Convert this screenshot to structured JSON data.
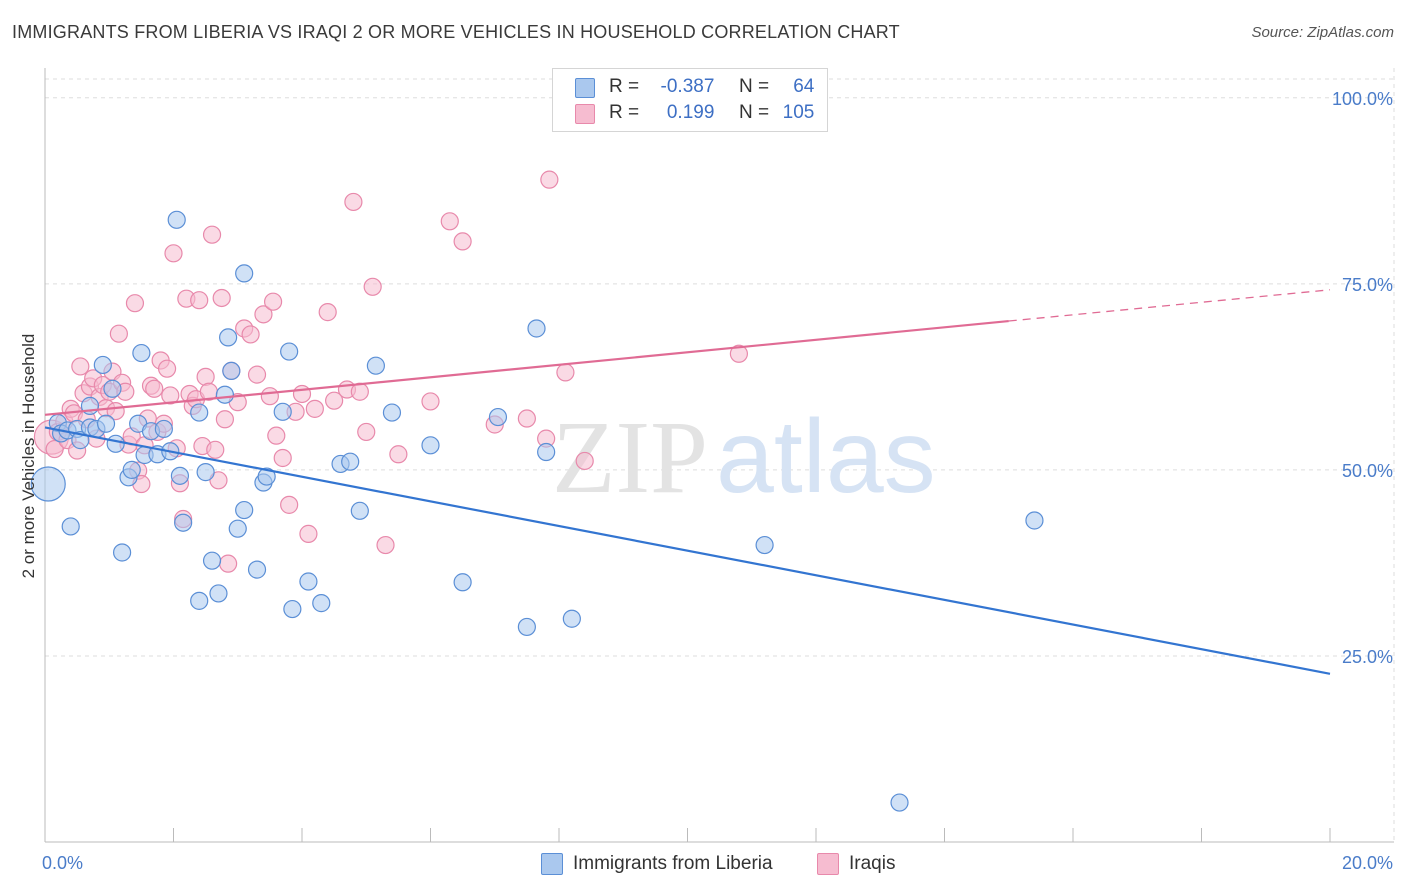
{
  "title": "IMMIGRANTS FROM LIBERIA VS IRAQI 2 OR MORE VEHICLES IN HOUSEHOLD CORRELATION CHART",
  "source": "Source: ZipAtlas.com",
  "watermark": {
    "zip": "ZIP",
    "atlas": "atlas"
  },
  "legend": {
    "rows": [
      {
        "r_label": "R =",
        "r_value": "-0.387",
        "n_label": "N =",
        "n_value": "64"
      },
      {
        "r_label": "R =",
        "r_value": "0.199",
        "n_label": "N =",
        "n_value": "105"
      }
    ]
  },
  "colors": {
    "liberia_fill": "#aac8ee",
    "liberia_stroke": "#5b8fd6",
    "liberia_line": "#3375d1",
    "iraqi_fill": "#f6bcd0",
    "iraqi_stroke": "#e889ab",
    "iraqi_line": "#e06b94",
    "tick_label": "#4a7cc9",
    "grid": "#dddddd"
  },
  "chart_data": {
    "type": "scatter",
    "title": "IMMIGRANTS FROM LIBERIA VS IRAQI 2 OR MORE VEHICLES IN HOUSEHOLD CORRELATION CHART",
    "xlabel": "",
    "ylabel": "2 or more Vehicles in Household",
    "xlim": [
      0,
      20
    ],
    "ylim": [
      0,
      104
    ],
    "x_ticks": [
      "0.0%",
      "20.0%"
    ],
    "y_ticks": [
      {
        "value": 100,
        "label": "100.0%"
      },
      {
        "value": 75,
        "label": "75.0%"
      },
      {
        "value": 50,
        "label": "50.0%"
      },
      {
        "value": 25,
        "label": "25.0%"
      }
    ],
    "grid": true,
    "legend_position": "top-center",
    "series": [
      {
        "name": "Immigrants from Liberia",
        "r": -0.387,
        "n": 64,
        "trend": {
          "x0": 0,
          "y0": 55.7,
          "x1": 20,
          "y1": 22.6,
          "solid_until": 20
        },
        "points": [
          [
            0.05,
            48.1
          ],
          [
            0.2,
            56.3
          ],
          [
            0.25,
            54.9
          ],
          [
            0.35,
            55.3
          ],
          [
            0.4,
            42.4
          ],
          [
            0.5,
            55.5
          ],
          [
            0.55,
            54.0
          ],
          [
            0.7,
            55.7
          ],
          [
            0.7,
            58.6
          ],
          [
            0.8,
            55.5
          ],
          [
            0.9,
            64.1
          ],
          [
            0.95,
            56.2
          ],
          [
            1.05,
            60.9
          ],
          [
            1.1,
            53.5
          ],
          [
            1.2,
            38.9
          ],
          [
            1.3,
            49.0
          ],
          [
            1.35,
            50.0
          ],
          [
            1.45,
            56.2
          ],
          [
            1.5,
            65.7
          ],
          [
            1.55,
            52.0
          ],
          [
            1.65,
            55.2
          ],
          [
            1.75,
            52.1
          ],
          [
            1.85,
            55.5
          ],
          [
            1.95,
            52.5
          ],
          [
            2.05,
            83.6
          ],
          [
            2.1,
            49.2
          ],
          [
            2.15,
            42.9
          ],
          [
            2.4,
            57.7
          ],
          [
            2.4,
            32.4
          ],
          [
            2.5,
            49.7
          ],
          [
            2.6,
            37.8
          ],
          [
            2.7,
            33.4
          ],
          [
            2.8,
            60.1
          ],
          [
            2.85,
            67.8
          ],
          [
            2.9,
            63.3
          ],
          [
            3.0,
            42.1
          ],
          [
            3.1,
            76.4
          ],
          [
            3.1,
            44.6
          ],
          [
            3.3,
            36.6
          ],
          [
            3.4,
            48.3
          ],
          [
            3.45,
            49.1
          ],
          [
            3.7,
            57.8
          ],
          [
            3.8,
            65.9
          ],
          [
            3.85,
            31.3
          ],
          [
            4.1,
            35.0
          ],
          [
            4.3,
            32.1
          ],
          [
            4.6,
            50.8
          ],
          [
            4.75,
            51.1
          ],
          [
            4.9,
            44.5
          ],
          [
            5.15,
            64.0
          ],
          [
            5.4,
            57.7
          ],
          [
            6.0,
            53.3
          ],
          [
            6.5,
            34.9
          ],
          [
            7.05,
            57.1
          ],
          [
            7.5,
            28.9
          ],
          [
            7.65,
            69.0
          ],
          [
            7.8,
            52.4
          ],
          [
            8.2,
            30.0
          ],
          [
            11.2,
            39.9
          ],
          [
            13.3,
            5.3
          ],
          [
            15.4,
            43.2
          ]
        ]
      },
      {
        "name": "Iraqis",
        "r": 0.199,
        "n": 105,
        "trend": {
          "x0": 0,
          "y0": 57.4,
          "x1": 20,
          "y1": 74.2,
          "solid_until": 15
        },
        "points": [
          [
            0.1,
            54.4
          ],
          [
            0.15,
            52.8
          ],
          [
            0.2,
            55.1
          ],
          [
            0.3,
            56.5
          ],
          [
            0.35,
            54.0
          ],
          [
            0.4,
            58.2
          ],
          [
            0.45,
            57.6
          ],
          [
            0.5,
            52.6
          ],
          [
            0.55,
            63.9
          ],
          [
            0.6,
            60.3
          ],
          [
            0.65,
            56.8
          ],
          [
            0.7,
            61.2
          ],
          [
            0.75,
            62.3
          ],
          [
            0.8,
            54.2
          ],
          [
            0.85,
            59.8
          ],
          [
            0.9,
            61.4
          ],
          [
            0.95,
            58.3
          ],
          [
            1.0,
            60.5
          ],
          [
            1.05,
            63.2
          ],
          [
            1.1,
            57.9
          ],
          [
            1.15,
            68.3
          ],
          [
            1.2,
            61.7
          ],
          [
            1.25,
            60.5
          ],
          [
            1.3,
            53.4
          ],
          [
            1.35,
            54.5
          ],
          [
            1.4,
            72.4
          ],
          [
            1.45,
            49.9
          ],
          [
            1.5,
            48.1
          ],
          [
            1.55,
            53.3
          ],
          [
            1.6,
            56.9
          ],
          [
            1.65,
            61.3
          ],
          [
            1.7,
            60.9
          ],
          [
            1.75,
            55.1
          ],
          [
            1.8,
            64.7
          ],
          [
            1.85,
            56.2
          ],
          [
            1.9,
            63.6
          ],
          [
            1.95,
            60.0
          ],
          [
            2.0,
            79.1
          ],
          [
            2.05,
            52.9
          ],
          [
            2.1,
            48.2
          ],
          [
            2.15,
            43.4
          ],
          [
            2.2,
            73.0
          ],
          [
            2.25,
            60.2
          ],
          [
            2.3,
            58.6
          ],
          [
            2.35,
            59.5
          ],
          [
            2.4,
            72.8
          ],
          [
            2.45,
            53.2
          ],
          [
            2.5,
            62.5
          ],
          [
            2.55,
            60.5
          ],
          [
            2.6,
            81.6
          ],
          [
            2.65,
            52.7
          ],
          [
            2.7,
            48.6
          ],
          [
            2.75,
            73.1
          ],
          [
            2.8,
            56.8
          ],
          [
            2.85,
            37.4
          ],
          [
            2.9,
            63.3
          ],
          [
            3.0,
            59.1
          ],
          [
            3.1,
            69.0
          ],
          [
            3.2,
            68.2
          ],
          [
            3.3,
            62.8
          ],
          [
            3.4,
            70.9
          ],
          [
            3.5,
            59.9
          ],
          [
            3.55,
            72.6
          ],
          [
            3.6,
            54.6
          ],
          [
            3.7,
            51.6
          ],
          [
            3.8,
            45.3
          ],
          [
            3.9,
            57.8
          ],
          [
            4.0,
            60.2
          ],
          [
            4.1,
            41.4
          ],
          [
            4.2,
            58.2
          ],
          [
            4.4,
            71.2
          ],
          [
            4.5,
            59.3
          ],
          [
            4.7,
            60.8
          ],
          [
            4.8,
            86.0
          ],
          [
            4.9,
            60.5
          ],
          [
            5.0,
            55.1
          ],
          [
            5.1,
            74.6
          ],
          [
            5.3,
            39.9
          ],
          [
            5.5,
            52.1
          ],
          [
            6.0,
            59.2
          ],
          [
            6.3,
            83.4
          ],
          [
            6.5,
            80.7
          ],
          [
            7.0,
            56.1
          ],
          [
            7.5,
            56.9
          ],
          [
            7.8,
            54.2
          ],
          [
            7.85,
            89.0
          ],
          [
            8.1,
            63.1
          ],
          [
            8.4,
            51.2
          ],
          [
            10.8,
            65.6
          ]
        ]
      }
    ],
    "bottom_legend": [
      "Immigrants from Liberia",
      "Iraqis"
    ]
  }
}
